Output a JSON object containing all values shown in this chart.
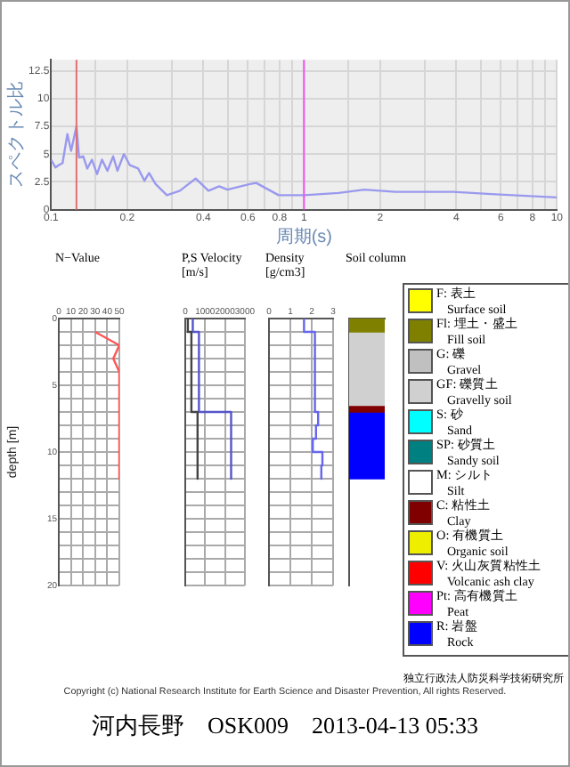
{
  "chart_data": [
    {
      "type": "line",
      "ylabel": "スペクトル比",
      "xlabel": "周期(s)",
      "log": "x",
      "grid": true,
      "marker": "none",
      "xlim": [
        0.1,
        10
      ],
      "ylim": [
        0,
        13.5
      ],
      "xticks": [
        0.1,
        {
          "value": 0.15,
          "label": null
        },
        0.2,
        {
          "value": 0.3,
          "label": null
        },
        0.4,
        {
          "value": 0.5,
          "label": null
        },
        0.6,
        {
          "value": 0.7,
          "label": null
        },
        0.8,
        {
          "value": 0.9,
          "label": null
        },
        1,
        {
          "value": 1.5,
          "label": null
        },
        2,
        {
          "value": 3,
          "label": null
        },
        4,
        {
          "value": 5,
          "label": null
        },
        6,
        {
          "value": 7,
          "label": null
        },
        8,
        {
          "value": 9,
          "label": null
        },
        10
      ],
      "yticks": [
        0,
        2.5,
        5,
        7.5,
        10,
        12.5
      ],
      "ref_lines": [
        {
          "axis": "x",
          "value": 0.126,
          "color": "#e07070"
        },
        {
          "axis": "x",
          "value": 1,
          "color": "#ee55ee"
        }
      ],
      "series": [
        {
          "color": "#9999ee",
          "x": [
            0.1,
            0.104,
            0.107,
            0.111,
            0.116,
            0.12,
            0.126,
            0.129,
            0.134,
            0.139,
            0.145,
            0.152,
            0.159,
            0.167,
            0.176,
            0.183,
            0.194,
            0.205,
            0.221,
            0.234,
            0.244,
            0.259,
            0.287,
            0.323,
            0.373,
            0.419,
            0.462,
            0.498,
            0.611,
            0.647,
            0.794,
            1,
            1.37,
            1.73,
            2.3,
            3.9,
            5.5,
            10
          ],
          "values": [
            4.5,
            3.8,
            4,
            4.2,
            6.8,
            5.3,
            7.5,
            4.7,
            4.8,
            3.7,
            4.5,
            3.2,
            4.5,
            3.5,
            4.8,
            3.5,
            5,
            4,
            3.7,
            2.6,
            3.3,
            2.3,
            1.3,
            1.7,
            2.8,
            1.7,
            2.1,
            1.8,
            2.3,
            2.4,
            1.3,
            1.3,
            1.5,
            1.8,
            1.6,
            1.6,
            1.4,
            1.1
          ]
        }
      ]
    },
    {
      "type": "line",
      "title": "N−Value",
      "ylabel": "depth [m]",
      "grid": true,
      "marker": "none",
      "xlim": [
        0,
        50
      ],
      "xticks": [
        0,
        10,
        20,
        30,
        40,
        50
      ],
      "ylim": [
        20,
        0
      ],
      "yticks": [
        0,
        {
          "value": 1,
          "label": null
        },
        {
          "value": 2,
          "label": null
        },
        {
          "value": 3,
          "label": null
        },
        {
          "value": 4,
          "label": null
        },
        5,
        {
          "value": 6,
          "label": null
        },
        {
          "value": 7,
          "label": null
        },
        {
          "value": 8,
          "label": null
        },
        {
          "value": 9,
          "label": null
        },
        10,
        {
          "value": 11,
          "label": null
        },
        {
          "value": 12,
          "label": null
        },
        {
          "value": 13,
          "label": null
        },
        {
          "value": 14,
          "label": null
        },
        15,
        {
          "value": 16,
          "label": null
        },
        {
          "value": 17,
          "label": null
        },
        {
          "value": 18,
          "label": null
        },
        {
          "value": 19,
          "label": null
        },
        20
      ],
      "series": [
        {
          "color": "#ff5555",
          "x": [
            30,
            50,
            45,
            50,
            50
          ],
          "values": [
            1,
            2,
            3,
            4,
            12
          ]
        }
      ]
    },
    {
      "type": "line",
      "title": "P,S Velocity [m/s]",
      "grid": true,
      "marker": "none",
      "tick_labels": "x",
      "xlim": [
        0,
        3000
      ],
      "xticks": [
        0,
        1000,
        2000,
        3000
      ],
      "ylim": [
        20,
        0
      ],
      "yticks": [
        0,
        {
          "value": 1,
          "label": null
        },
        {
          "value": 2,
          "label": null
        },
        {
          "value": 3,
          "label": null
        },
        {
          "value": 4,
          "label": null
        },
        5,
        {
          "value": 6,
          "label": null
        },
        {
          "value": 7,
          "label": null
        },
        {
          "value": 8,
          "label": null
        },
        {
          "value": 9,
          "label": null
        },
        10,
        {
          "value": 11,
          "label": null
        },
        {
          "value": 12,
          "label": null
        },
        {
          "value": 13,
          "label": null
        },
        {
          "value": 14,
          "label": null
        },
        15,
        {
          "value": 16,
          "label": null
        },
        {
          "value": 17,
          "label": null
        },
        {
          "value": 18,
          "label": null
        },
        {
          "value": 19,
          "label": null
        },
        20
      ],
      "series": [
        {
          "color": "#444444",
          "x": [
            130,
            130,
            310,
            310,
            620,
            620
          ],
          "values": [
            0,
            1,
            1,
            7,
            7,
            12
          ]
        },
        {
          "color": "#5555cc",
          "x": [
            380,
            380,
            690,
            690,
            2310,
            2310
          ],
          "values": [
            0,
            1,
            1,
            7,
            7,
            12
          ]
        }
      ]
    },
    {
      "type": "line",
      "title": "Density [g/cm3]",
      "grid": true,
      "marker": "none",
      "tick_labels": "x",
      "xlim": [
        0,
        3
      ],
      "xticks": [
        0,
        1,
        2,
        3
      ],
      "ylim": [
        20,
        0
      ],
      "yticks": [
        0,
        {
          "value": 1,
          "label": null
        },
        {
          "value": 2,
          "label": null
        },
        {
          "value": 3,
          "label": null
        },
        {
          "value": 4,
          "label": null
        },
        5,
        {
          "value": 6,
          "label": null
        },
        {
          "value": 7,
          "label": null
        },
        {
          "value": 8,
          "label": null
        },
        {
          "value": 9,
          "label": null
        },
        10,
        {
          "value": 11,
          "label": null
        },
        {
          "value": 12,
          "label": null
        },
        {
          "value": 13,
          "label": null
        },
        {
          "value": 14,
          "label": null
        },
        15,
        {
          "value": 16,
          "label": null
        },
        {
          "value": 17,
          "label": null
        },
        {
          "value": 18,
          "label": null
        },
        {
          "value": 19,
          "label": null
        },
        20
      ],
      "series": [
        {
          "color": "#6666ee",
          "x": [
            1.64,
            1.64,
            2.15,
            2.15,
            2.3,
            2.3,
            2.2,
            2.2,
            2.05,
            2.05,
            2.5,
            2.5,
            2.45,
            2.45
          ],
          "values": [
            0,
            1,
            1,
            7,
            7,
            8,
            8,
            9,
            9,
            10,
            10,
            11,
            11,
            12
          ]
        }
      ]
    },
    {
      "type": "bar",
      "title": "Soil column",
      "stacked": true,
      "tick_labels": false,
      "ylim": [
        20,
        0
      ],
      "categories": [
        null
      ],
      "series": [
        {
          "color": "#808000",
          "values": [
            1
          ]
        },
        {
          "color": "#d0d0d0",
          "values": [
            5.5
          ]
        },
        {
          "color": "#800000",
          "values": [
            0.5
          ]
        },
        {
          "color": "#0000ff",
          "values": [
            5
          ]
        }
      ]
    },
    {
      "type": "other",
      "annotations": [
        "F: 表土\nSurface soil",
        "Fl: 埋土・盛土\nFill soil",
        "G: 礫\nGravel",
        "GF: 礫質土\nGravelly soil",
        "S: 砂\nSand",
        "SP: 砂質土\nSandy soil",
        "M: シルト\nSilt",
        "C: 粘性土\nClay",
        "O: 有機質土\nOrganic soil",
        "V: 火山灰質粘性土\nVolcanic ash clay",
        "Pt: 高有機質土\nPeat",
        "R: 岩盤\nRock",
        "独立行政法人防災科学技術研究所",
        "Copyright (c) National Research Institute for Earth Science and Disaster Prevention, All rights Reserved.",
        "河内長野　OSK009　2013-04-13 05:33"
      ]
    }
  ]
}
